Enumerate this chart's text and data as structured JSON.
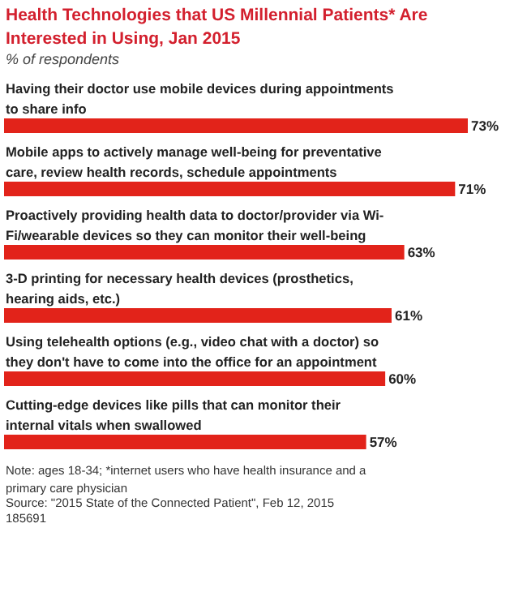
{
  "chart_data": {
    "type": "bar",
    "orientation": "horizontal",
    "title": "Health Technologies that US Millennial Patients* Are Interested in Using, Jan 2015",
    "subtitle": "% of respondents",
    "categories": [
      "Having their doctor use mobile devices during appointments to share info",
      "Mobile apps to actively manage well-being for preventative care, review health records, schedule appointments",
      "Proactively providing health data to doctor/provider via Wi-Fi/wearable devices so they can monitor their well-being",
      "3-D printing for necessary health devices (prosthetics, hearing aids, etc.)",
      "Using telehealth options (e.g., video chat with a doctor) so they don't have to come into the office for an appointment",
      "Cutting-edge devices like pills that can monitor their internal vitals when swallowed"
    ],
    "values": [
      73,
      71,
      63,
      61,
      60,
      57
    ],
    "value_labels": [
      "73%",
      "71%",
      "63%",
      "61%",
      "60%",
      "57%"
    ],
    "color": "#e2231a",
    "annotations": [
      "Note: ages 18-34; *internet users who have health insurance and a primary care physician",
      "Source: \"2015 State of the Connected Patient\", Feb 12, 2015",
      "185691"
    ]
  }
}
